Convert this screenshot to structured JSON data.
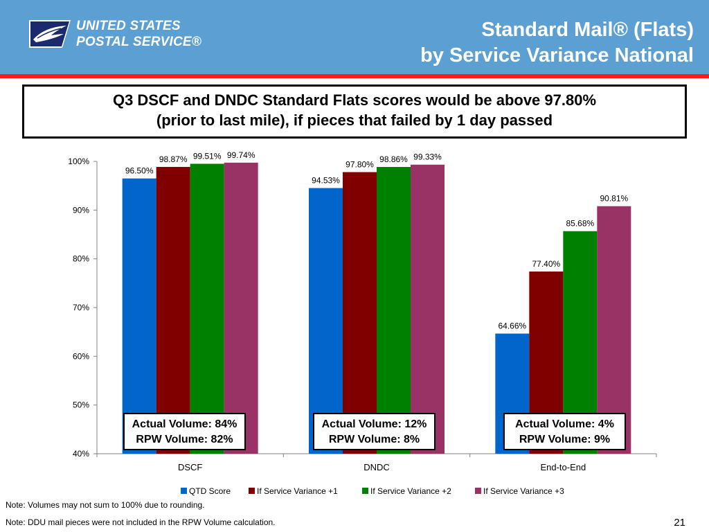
{
  "header": {
    "logo_line1": "UNITED STATES",
    "logo_line2": "POSTAL SERVICE®",
    "title_line1": "Standard Mail® (Flats)",
    "title_line2": "by Service Variance National"
  },
  "headline": {
    "line1": "Q3 DSCF and DNDC Standard Flats scores would be above 97.80%",
    "line2": "(prior to last mile), if pieces that failed by 1 day passed"
  },
  "chart_data": {
    "type": "bar",
    "categories": [
      "DSCF",
      "DNDC",
      "End-to-End"
    ],
    "series": [
      {
        "name": "QTD Score",
        "color": "#0066cc",
        "values": [
          96.5,
          94.53,
          64.66
        ],
        "labels": [
          "96.50%",
          "94.53%",
          "64.66%"
        ]
      },
      {
        "name": "If Service Variance +1",
        "color": "#800000",
        "values": [
          98.87,
          97.8,
          77.4
        ],
        "labels": [
          "98.87%",
          "97.80%",
          "77.40%"
        ]
      },
      {
        "name": "If Service Variance +2",
        "color": "#008000",
        "values": [
          99.51,
          98.86,
          85.68
        ],
        "labels": [
          "99.51%",
          "98.86%",
          "85.68%"
        ]
      },
      {
        "name": "If Service Variance +3",
        "color": "#993366",
        "values": [
          99.74,
          99.33,
          90.81
        ],
        "labels": [
          "99.74%",
          "99.33%",
          "90.81%"
        ]
      }
    ],
    "ylim": [
      40,
      100
    ],
    "yticks": [
      "40%",
      "50%",
      "60%",
      "70%",
      "80%",
      "90%",
      "100%"
    ],
    "title": "",
    "xlabel": "",
    "ylabel": "",
    "legend_position": "bottom"
  },
  "volume_boxes": [
    {
      "actual": "Actual Volume: 84%",
      "rpw": "RPW Volume: 82%"
    },
    {
      "actual": "Actual Volume: 12%",
      "rpw": "RPW Volume: 8%"
    },
    {
      "actual": "Actual Volume: 4%",
      "rpw": "RPW Volume: 9%"
    }
  ],
  "notes": {
    "note1": "Note: Volumes may not sum to 100% due to rounding.",
    "note2": "Note: DDU mail pieces were not included in the RPW Volume calculation."
  },
  "page_number": "21"
}
